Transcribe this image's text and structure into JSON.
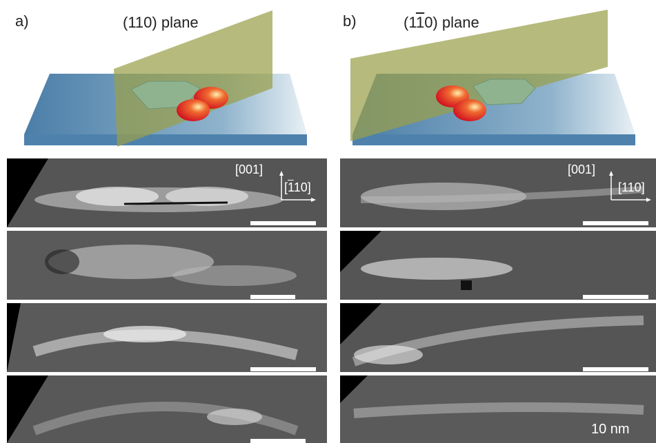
{
  "panels": {
    "a": {
      "label": "a)",
      "title_pre": "(110) plane",
      "axis_vertical": "[001]",
      "axis_horizontal_pre": "[",
      "axis_horizontal_bar": "1",
      "axis_horizontal_post": "10]"
    },
    "b": {
      "label": "b)",
      "title_pre": "(1",
      "title_bar": "1",
      "title_post": "0) plane",
      "axis_vertical": "[001]",
      "axis_horizontal": "[110]"
    }
  },
  "scale_text": "10 nm",
  "colors": {
    "substrate": "#4f86ad",
    "plane": "#9aa04a",
    "dot": "#e23a2f",
    "wire": "#8fb38f"
  }
}
